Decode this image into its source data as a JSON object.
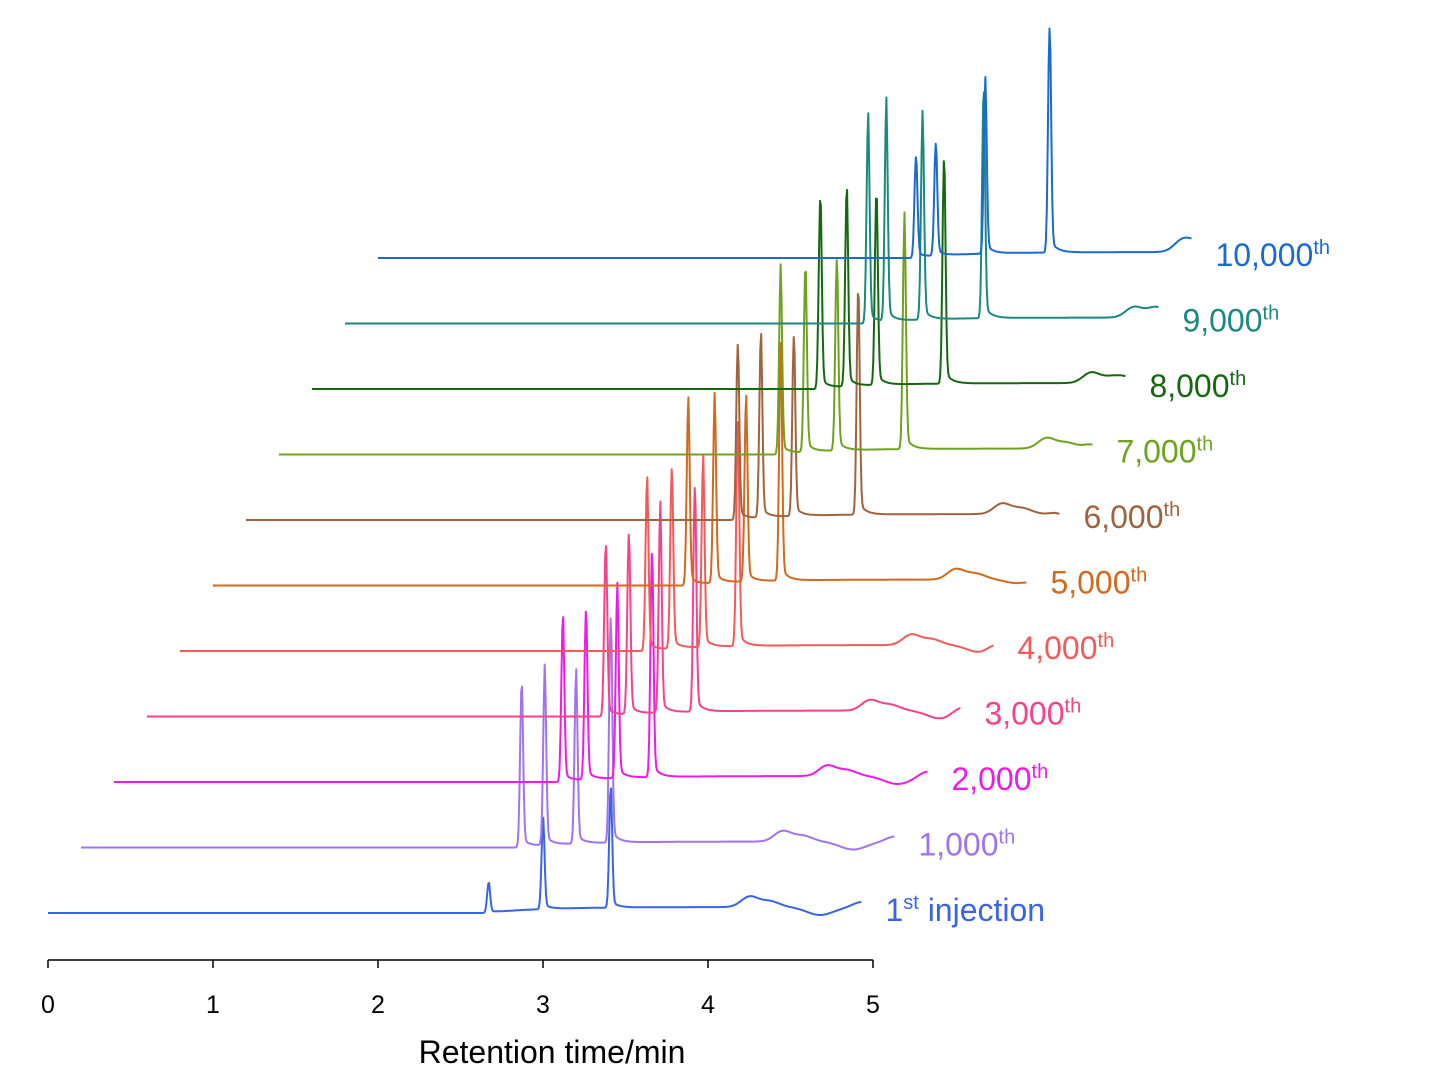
{
  "chart_data": {
    "type": "line",
    "subtype": "waterfall (offset) chromatograms",
    "xlabel": "Retention time/min",
    "ylabel": "",
    "x_ticks": [
      0,
      1,
      2,
      3,
      4,
      5
    ],
    "xlim": [
      0,
      5
    ],
    "x_range": [
      0,
      4.93
    ],
    "grid": false,
    "legend": "none; each trace labelled at its right end",
    "peaks": [
      {
        "time": 2.67,
        "height": 1.0
      },
      {
        "time": 3.0,
        "height": 1.04
      },
      {
        "time": 3.2,
        "height": 0.0
      },
      {
        "time": 3.41,
        "height": 1.05
      }
    ],
    "series": [
      {
        "name": "1st injection",
        "label_main": "1",
        "label_sup": "st",
        "label_rest": " injection",
        "color": "#3A64E8",
        "peak_times": [
          2.67,
          3.0,
          3.41
        ],
        "peak_heights": [
          0.65,
          0.75,
          1.0
        ],
        "hump_time": 4.25
      },
      {
        "name": "1,000th",
        "label_main": "1,000",
        "label_sup": "th",
        "label_rest": "",
        "color": "#A074F0",
        "peak_times": [
          2.87,
          3.01,
          3.2,
          3.41
        ],
        "peak_heights": [
          0.72,
          0.76,
          0.75,
          1.0
        ],
        "hump_time": 4.45
      },
      {
        "name": "2,000th",
        "label_main": "2,000",
        "label_sup": "th",
        "label_rest": "",
        "color": "#F01AE6",
        "peak_times": [
          3.12,
          3.26,
          3.45,
          3.66
        ],
        "peak_heights": [
          0.72,
          0.75,
          0.83,
          1.0
        ],
        "hump_time": 4.72
      },
      {
        "name": "3,000th",
        "label_main": "3,000",
        "label_sup": "th",
        "label_rest": "",
        "color": "#F7428A",
        "peak_times": [
          3.38,
          3.52,
          3.71,
          3.92
        ],
        "peak_heights": [
          0.75,
          0.8,
          0.9,
          1.0
        ],
        "hump_time": 4.98
      },
      {
        "name": "4,000th",
        "label_main": "4,000",
        "label_sup": "th",
        "label_rest": "",
        "color": "#F55A5A",
        "peak_times": [
          3.63,
          3.78,
          3.97,
          4.18
        ],
        "peak_heights": [
          0.75,
          0.8,
          0.82,
          1.0
        ],
        "hump_time": 5.23
      },
      {
        "name": "5,000th",
        "label_main": "5,000",
        "label_sup": "th",
        "label_rest": "",
        "color": "#D2691E",
        "peak_times": [
          3.88,
          4.04,
          4.23,
          4.44
        ],
        "peak_heights": [
          0.8,
          0.8,
          0.8,
          1.0
        ],
        "hump_time": 5.5
      },
      {
        "name": "6,000th",
        "label_main": "6,000",
        "label_sup": "th",
        "label_rest": "",
        "color": "#A0643C",
        "peak_times": [
          4.18,
          4.32,
          4.52,
          4.91
        ],
        "peak_heights": [
          0.78,
          0.8,
          0.8,
          1.0
        ],
        "hump_time": 5.78
      },
      {
        "name": "7,000th",
        "label_main": "7,000",
        "label_sup": "th",
        "label_rest": "",
        "color": "#6FA31E",
        "peak_times": [
          4.44,
          4.59,
          4.78,
          5.19
        ],
        "peak_heights": [
          0.8,
          0.82,
          0.85,
          1.0
        ],
        "hump_time": 6.05
      },
      {
        "name": "8,000th",
        "label_main": "8,000",
        "label_sup": "th",
        "label_rest": "",
        "color": "#14690F",
        "peak_times": [
          4.68,
          4.84,
          5.02,
          5.43
        ],
        "peak_heights": [
          0.85,
          0.87,
          0.85,
          1.0
        ],
        "hump_time": 6.32
      },
      {
        "name": "9,000th",
        "label_main": "9,000",
        "label_sup": "th",
        "label_rest": "",
        "color": "#1A8A80",
        "peak_times": [
          4.97,
          5.08,
          5.3,
          5.67
        ],
        "peak_heights": [
          0.9,
          0.95,
          0.88,
          1.0
        ],
        "hump_time": 6.58
      },
      {
        "name": "10,000th",
        "label_main": "10,000",
        "label_sup": "th",
        "label_rest": "",
        "color": "#1A6ACF",
        "peak_times": [
          5.26,
          5.38,
          5.68,
          6.07
        ],
        "peak_heights": [
          0.45,
          0.5,
          0.75,
          1.0
        ],
        "hump_time": 6.87
      }
    ]
  }
}
